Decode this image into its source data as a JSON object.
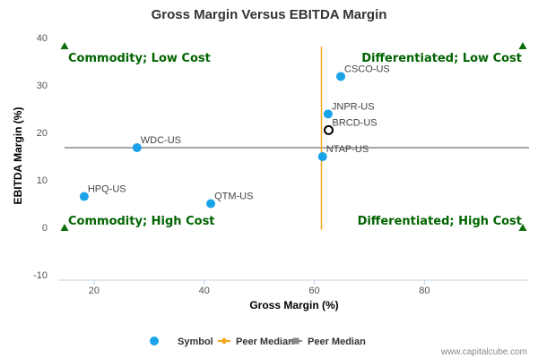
{
  "chart_data": {
    "type": "scatter",
    "title": "Gross Margin Versus EBITDA Margin",
    "xlabel": "Gross Margin (%)",
    "ylabel": "EBITDA Margin (%)",
    "xlim": [
      13.5,
      99
    ],
    "ylim": [
      -10,
      40
    ],
    "x_ticks": [
      20,
      40,
      60,
      80
    ],
    "y_ticks": [
      -10,
      0,
      10,
      20,
      30,
      40
    ],
    "grid": false,
    "points": [
      {
        "label": "CSCO-US",
        "x": 64.8,
        "y": 31.8
      },
      {
        "label": "JNPR-US",
        "x": 62.5,
        "y": 23.9
      },
      {
        "label": "BRCD-US",
        "x": 62.6,
        "y": 20.5,
        "highlight": true
      },
      {
        "label": "NTAP-US",
        "x": 61.5,
        "y": 14.9
      },
      {
        "label": "WDC-US",
        "x": 27.8,
        "y": 16.8
      },
      {
        "label": "HPQ-US",
        "x": 18.2,
        "y": 6.5
      },
      {
        "label": "QTM-US",
        "x": 41.2,
        "y": 5.0
      }
    ],
    "peer_median_x": 61.3,
    "peer_median_y": 16.8,
    "quadrants": {
      "top_left": "Commodity; Low Cost",
      "top_right": "Differentiated; Low Cost",
      "bottom_left": "Commodity; High Cost",
      "bottom_right": "Differentiated; High Cost"
    },
    "legend": {
      "position": "bottom",
      "items": [
        {
          "name": "Symbol",
          "color": "#1aa3e8",
          "marker": "circle"
        },
        {
          "name": "Peer Median",
          "color": "#f5a623",
          "marker": "diamond"
        },
        {
          "name": "Peer Median",
          "color": "#888888",
          "marker": "square"
        }
      ]
    },
    "colors": {
      "point": "#1aa3e8",
      "median_vertical": "#f5a623",
      "median_horizontal": "#888888",
      "quadrant_text": "#006400"
    }
  },
  "credit": "www.capitalcube.com"
}
